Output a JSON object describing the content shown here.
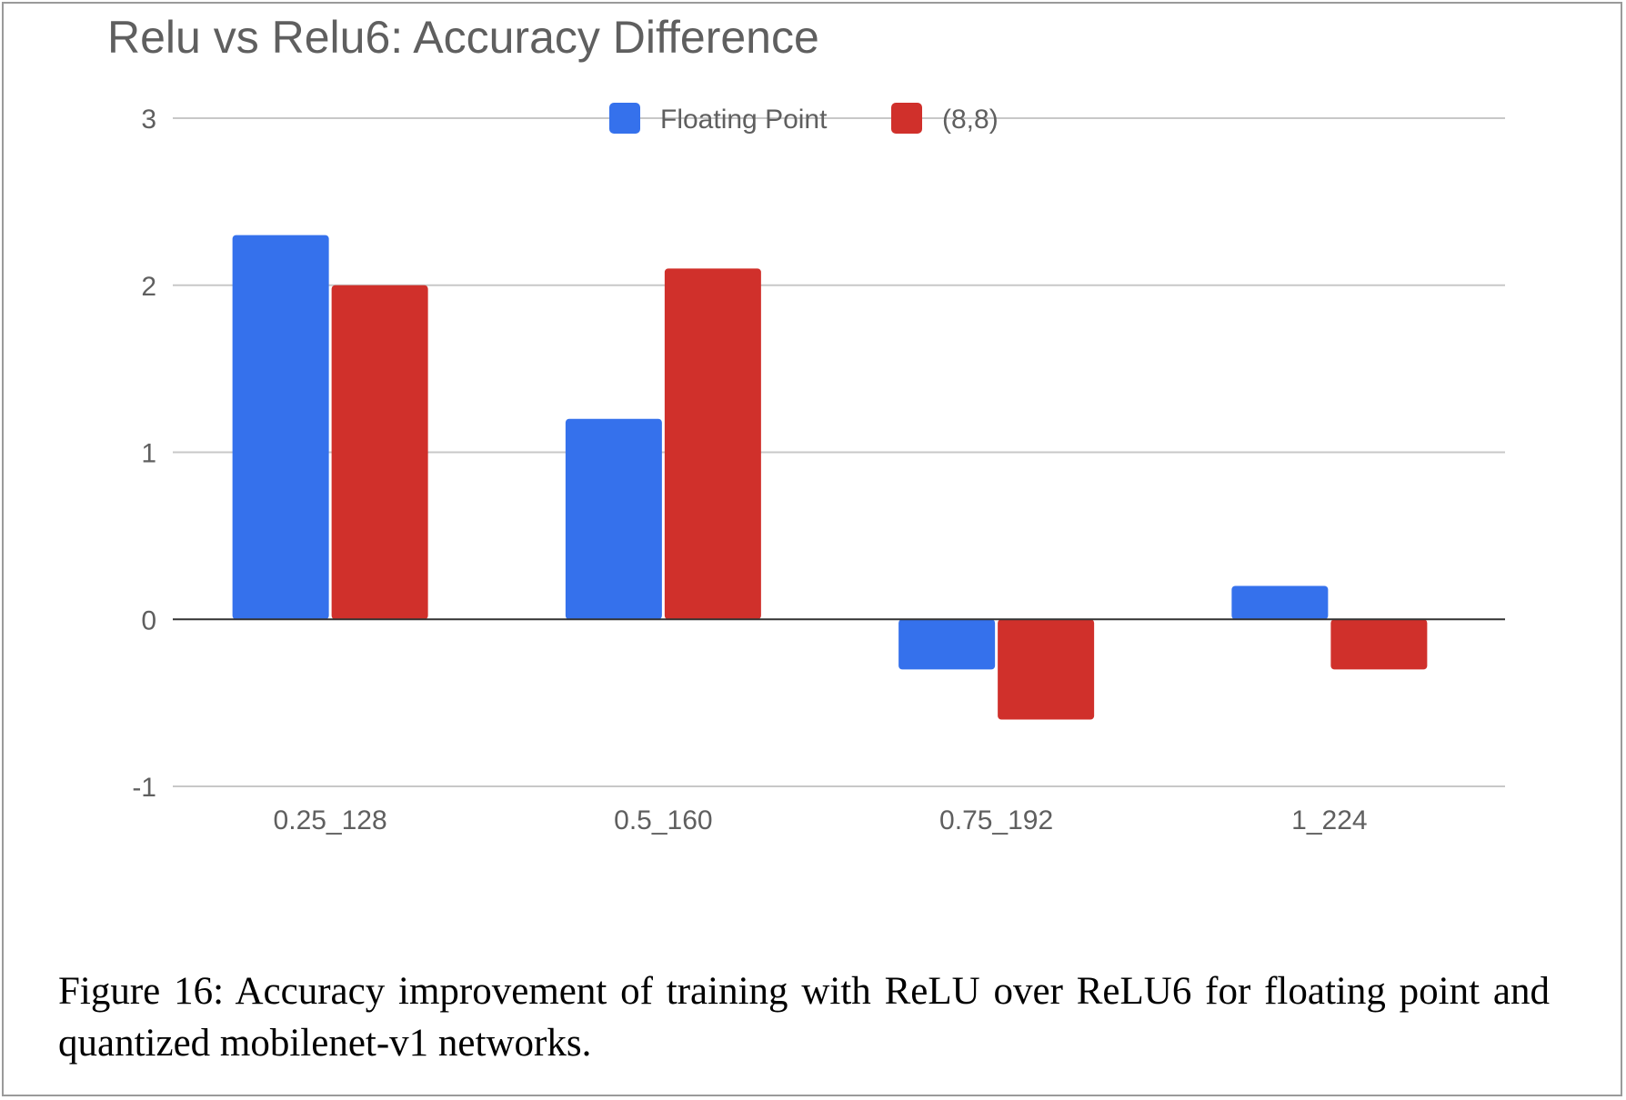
{
  "figure_caption": "Figure 16: Accuracy improvement of training with ReLU over ReLU6 for floating point and quantized mobilenet-v1 networks.",
  "chart_data": {
    "type": "bar",
    "title": "Relu vs Relu6: Accuracy Difference",
    "xlabel": "",
    "ylabel": "",
    "categories": [
      "0.25_128",
      "0.5_160",
      "0.75_192",
      "1_224"
    ],
    "series": [
      {
        "name": "Floating Point",
        "color": "#3571ec",
        "values": [
          2.3,
          1.2,
          -0.3,
          0.2
        ]
      },
      {
        "name": "(8,8)",
        "color": "#d0302b",
        "values": [
          2.0,
          2.1,
          -0.6,
          -0.3
        ]
      }
    ],
    "ylim": [
      -1,
      3
    ],
    "yticks": [
      "-1",
      "0",
      "1",
      "2",
      "3"
    ],
    "grid": true,
    "legend_position": "top-center"
  }
}
